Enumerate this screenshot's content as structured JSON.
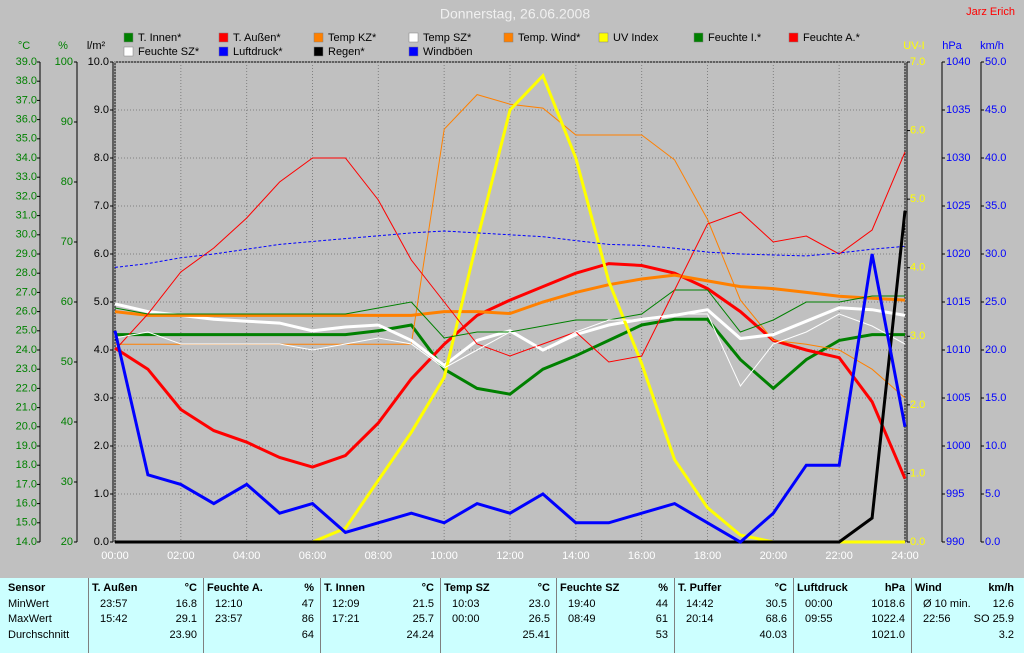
{
  "chart_data": {
    "type": "line",
    "title": "Donnerstag, 26.06.2008",
    "author": "Jarz Erich",
    "xlim": [
      0,
      24
    ],
    "xticks": [
      {
        "value": 0,
        "label": "00:00"
      },
      {
        "value": 2,
        "label": "02:00"
      },
      {
        "value": 4,
        "label": "04:00"
      },
      {
        "value": 6,
        "label": "06:00"
      },
      {
        "value": 8,
        "label": "08:00"
      },
      {
        "value": 10,
        "label": "10:00"
      },
      {
        "value": 12,
        "label": "12:00"
      },
      {
        "value": 14,
        "label": "14:00"
      },
      {
        "value": 16,
        "label": "16:00"
      },
      {
        "value": 18,
        "label": "18:00"
      },
      {
        "value": 20,
        "label": "20:00"
      },
      {
        "value": 22,
        "label": "22:00"
      },
      {
        "value": 24,
        "label": "24:00"
      }
    ],
    "xgrid": true,
    "x": [
      0,
      1,
      2,
      3,
      4,
      5,
      6,
      7,
      8,
      9,
      10,
      11,
      12,
      13,
      14,
      15,
      16,
      17,
      18,
      19,
      20,
      21,
      22,
      23,
      24
    ],
    "y_axes": [
      {
        "label": "°C",
        "color": "#008000",
        "lim": [
          14,
          39
        ],
        "ticks": [
          {
            "value": 14,
            "label": "14.0"
          },
          {
            "value": 15,
            "label": "15.0"
          },
          {
            "value": 16,
            "label": "16.0"
          },
          {
            "value": 17,
            "label": "17.0"
          },
          {
            "value": 18,
            "label": "18.0"
          },
          {
            "value": 19,
            "label": "19.0"
          },
          {
            "value": 20,
            "label": "20.0"
          },
          {
            "value": 21,
            "label": "21.0"
          },
          {
            "value": 22,
            "label": "22.0"
          },
          {
            "value": 23,
            "label": "23.0"
          },
          {
            "value": 24,
            "label": "24.0"
          },
          {
            "value": 25,
            "label": "25.0"
          },
          {
            "value": 26,
            "label": "26.0"
          },
          {
            "value": 27,
            "label": "27.0"
          },
          {
            "value": 28,
            "label": "28.0"
          },
          {
            "value": 29,
            "label": "29.0"
          },
          {
            "value": 30,
            "label": "30.0"
          },
          {
            "value": 31,
            "label": "31.0"
          },
          {
            "value": 32,
            "label": "32.0"
          },
          {
            "value": 33,
            "label": "33.0"
          },
          {
            "value": 34,
            "label": "34.0"
          },
          {
            "value": 35,
            "label": "35.0"
          },
          {
            "value": 36,
            "label": "36.0"
          },
          {
            "value": 37,
            "label": "37.0"
          },
          {
            "value": 38,
            "label": "38.0"
          },
          {
            "value": 39,
            "label": "39.0"
          }
        ]
      },
      {
        "label": "%",
        "color": "#008000",
        "lim": [
          20,
          100
        ],
        "ticks": [
          20,
          30,
          40,
          50,
          60,
          70,
          80,
          90,
          100
        ]
      },
      {
        "label": "l/m²",
        "color": "#000000",
        "lim": [
          0,
          10
        ],
        "grid": true,
        "ticks": [
          {
            "value": 0,
            "label": "0.0"
          },
          {
            "value": 1,
            "label": "1.0"
          },
          {
            "value": 2,
            "label": "2.0"
          },
          {
            "value": 3,
            "label": "3.0"
          },
          {
            "value": 4,
            "label": "4.0"
          },
          {
            "value": 5,
            "label": "5.0"
          },
          {
            "value": 6,
            "label": "6.0"
          },
          {
            "value": 7,
            "label": "7.0"
          },
          {
            "value": 8,
            "label": "8.0"
          },
          {
            "value": 9,
            "label": "9.0"
          },
          {
            "value": 10,
            "label": "10.0"
          }
        ]
      },
      {
        "label": "UV-I",
        "color": "#ffff00",
        "lim": [
          0,
          7
        ],
        "ticks": [
          {
            "value": 0,
            "label": "0.0"
          },
          {
            "value": 1,
            "label": "1.0"
          },
          {
            "value": 2,
            "label": "2.0"
          },
          {
            "value": 3,
            "label": "3.0"
          },
          {
            "value": 4,
            "label": "4.0"
          },
          {
            "value": 5,
            "label": "5.0"
          },
          {
            "value": 6,
            "label": "6.0"
          },
          {
            "value": 7,
            "label": "7.0"
          }
        ]
      },
      {
        "label": "hPa",
        "color": "#0000ff",
        "lim": [
          990,
          1040
        ],
        "ticks": [
          990,
          995,
          1000,
          1005,
          1010,
          1015,
          1020,
          1025,
          1030,
          1035,
          1040
        ]
      },
      {
        "label": "km/h",
        "color": "#0000ff",
        "lim": [
          0,
          50
        ],
        "ticks": [
          {
            "value": 0,
            "label": "0.0"
          },
          {
            "value": 5,
            "label": "5.0"
          },
          {
            "value": 10,
            "label": "10.0"
          },
          {
            "value": 15,
            "label": "15.0"
          },
          {
            "value": 20,
            "label": "20.0"
          },
          {
            "value": 25,
            "label": "25.0"
          },
          {
            "value": 30,
            "label": "30.0"
          },
          {
            "value": 35,
            "label": "35.0"
          },
          {
            "value": 40,
            "label": "40.0"
          },
          {
            "value": 45,
            "label": "45.0"
          },
          {
            "value": 50,
            "label": "50.0"
          }
        ]
      }
    ],
    "series": [
      {
        "name": "T. Innen*",
        "color": "#008000",
        "width": 3,
        "axis": 0,
        "values": [
          24.8,
          24.8,
          24.8,
          24.8,
          24.8,
          24.8,
          24.8,
          24.8,
          25.0,
          25.3,
          23.0,
          22.0,
          21.7,
          23.0,
          23.7,
          24.5,
          25.3,
          25.6,
          25.6,
          23.5,
          22.0,
          23.5,
          24.5,
          24.8,
          24.8
        ]
      },
      {
        "name": "T. Außen*",
        "color": "#ff0000",
        "width": 3,
        "axis": 0,
        "values": [
          24.1,
          23.0,
          20.9,
          19.8,
          19.2,
          18.4,
          17.9,
          18.5,
          20.2,
          22.5,
          24.3,
          25.8,
          26.6,
          27.3,
          28.0,
          28.5,
          28.4,
          28.0,
          27.2,
          26.0,
          24.5,
          24.0,
          23.6,
          21.3,
          17.3
        ]
      },
      {
        "name": "Temp KZ*",
        "color": "#ff8000",
        "width": 1,
        "axis": 0,
        "values": [
          24.3,
          24.3,
          24.3,
          24.3,
          24.3,
          24.3,
          24.3,
          24.3,
          24.3,
          24.3,
          35.5,
          37.3,
          36.8,
          36.6,
          35.2,
          35.2,
          35.2,
          33.9,
          30.8,
          26.6,
          24.5,
          24.3,
          24.0,
          23.0,
          21.5
        ]
      },
      {
        "name": "Temp SZ*",
        "color": "#ffffff",
        "width": 3,
        "axis": 0,
        "values": [
          26.4,
          26.0,
          25.8,
          25.6,
          25.5,
          25.4,
          25.0,
          25.2,
          25.3,
          24.5,
          23.2,
          24.5,
          25.0,
          24.0,
          24.8,
          25.3,
          25.6,
          25.8,
          26.1,
          24.6,
          24.8,
          25.5,
          26.2,
          26.1,
          25.8
        ]
      },
      {
        "name": "Temp. Wind*",
        "color": "#ff8000",
        "width": 3,
        "axis": 0,
        "values": [
          26.0,
          25.8,
          25.8,
          25.8,
          25.8,
          25.8,
          25.8,
          25.8,
          25.8,
          25.8,
          26.0,
          26.0,
          25.9,
          26.5,
          27.0,
          27.4,
          27.7,
          27.9,
          27.6,
          27.3,
          27.2,
          27.0,
          26.8,
          26.7,
          26.6
        ]
      },
      {
        "name": "UV Index",
        "color": "#ffff00",
        "width": 3,
        "axis": 3,
        "values": [
          0,
          0,
          0,
          0,
          0,
          0,
          0,
          0.2,
          0.9,
          1.6,
          2.4,
          4.4,
          6.3,
          6.8,
          5.6,
          3.8,
          2.6,
          1.2,
          0.5,
          0.1,
          0,
          0,
          0,
          0,
          0
        ]
      },
      {
        "name": "Feuchte I.*",
        "color": "#008000",
        "width": 1,
        "axis": 1,
        "values": [
          59,
          58,
          58,
          58,
          58,
          58,
          58,
          58,
          59,
          60,
          54,
          55,
          55,
          56,
          57,
          57,
          58,
          62,
          62,
          55,
          57,
          60,
          60,
          61,
          61
        ]
      },
      {
        "name": "Feuchte A.*",
        "color": "#ff0000",
        "width": 1,
        "axis": 1,
        "values": [
          52,
          58,
          65,
          69,
          74,
          80,
          84,
          84,
          77,
          67,
          60,
          53,
          51,
          53,
          55,
          50,
          51,
          62,
          73,
          75,
          70,
          71,
          68,
          72,
          85
        ]
      },
      {
        "name": "Feuchte SZ*",
        "color": "#ffffff",
        "width": 1,
        "axis": 1,
        "values": [
          54,
          55,
          53,
          53,
          53,
          53,
          52,
          53,
          54,
          53,
          49,
          52,
          55,
          52,
          55,
          57,
          57,
          58,
          58,
          46,
          53,
          55,
          58,
          56,
          53
        ]
      },
      {
        "name": "Luftdruck*",
        "color": "#0000ff",
        "width": 1,
        "dashed": true,
        "axis": 4,
        "values": [
          1018.6,
          1019.0,
          1019.6,
          1020.0,
          1020.5,
          1021.0,
          1021.3,
          1021.6,
          1021.9,
          1022.2,
          1022.4,
          1022.2,
          1022.0,
          1021.8,
          1021.4,
          1021.0,
          1020.9,
          1020.6,
          1020.2,
          1020.0,
          1019.9,
          1019.8,
          1020.1,
          1020.5,
          1020.8
        ]
      },
      {
        "name": "Regen*",
        "color": "#000000",
        "width": 3,
        "axis": 2,
        "values": [
          0,
          0,
          0,
          0,
          0,
          0,
          0,
          0,
          0,
          0,
          0,
          0,
          0,
          0,
          0,
          0,
          0,
          0,
          0,
          0,
          0,
          0,
          0,
          0.5,
          6.9
        ]
      },
      {
        "name": "Windböen",
        "color": "#0000ff",
        "width": 3,
        "axis": 5,
        "values": [
          22,
          7,
          6,
          4,
          6,
          3,
          4,
          1,
          2,
          3,
          2,
          4,
          3,
          5,
          2,
          2,
          3,
          4,
          2,
          0,
          3,
          8,
          8,
          30,
          12
        ]
      }
    ]
  },
  "table": {
    "row_labels": [
      "Sensor",
      "MinWert",
      "MaxWert",
      "Durchschnitt"
    ],
    "columns": [
      {
        "name": "T. Außen",
        "unit": "°C",
        "min": [
          "23:57",
          "16.8"
        ],
        "max": [
          "15:42",
          "29.1"
        ],
        "avg": "23.90"
      },
      {
        "name": "Feuchte A.",
        "unit": "%",
        "min": [
          "12:10",
          "47"
        ],
        "max": [
          "23:57",
          "86"
        ],
        "avg": "64"
      },
      {
        "name": "T. Innen",
        "unit": "°C",
        "min": [
          "12:09",
          "21.5"
        ],
        "max": [
          "17:21",
          "25.7"
        ],
        "avg": "24.24"
      },
      {
        "name": "Temp SZ",
        "unit": "°C",
        "min": [
          "10:03",
          "23.0"
        ],
        "max": [
          "00:00",
          "26.5"
        ],
        "avg": "25.41"
      },
      {
        "name": "Feuchte SZ",
        "unit": "%",
        "min": [
          "19:40",
          "44"
        ],
        "max": [
          "08:49",
          "61"
        ],
        "avg": "53"
      },
      {
        "name": "T. Puffer",
        "unit": "°C",
        "min": [
          "14:42",
          "30.5"
        ],
        "max": [
          "20:14",
          "68.6"
        ],
        "avg": "40.03"
      },
      {
        "name": "Luftdruck",
        "unit": "hPa",
        "min": [
          "00:00",
          "1018.6"
        ],
        "max": [
          "09:55",
          "1022.4"
        ],
        "avg": "1021.0"
      },
      {
        "name": "Wind",
        "unit": "km/h",
        "min": [
          "Ø 10 min.",
          "12.6"
        ],
        "max": [
          "22:56",
          "SO 25.9"
        ],
        "avg": "3.2"
      }
    ]
  }
}
